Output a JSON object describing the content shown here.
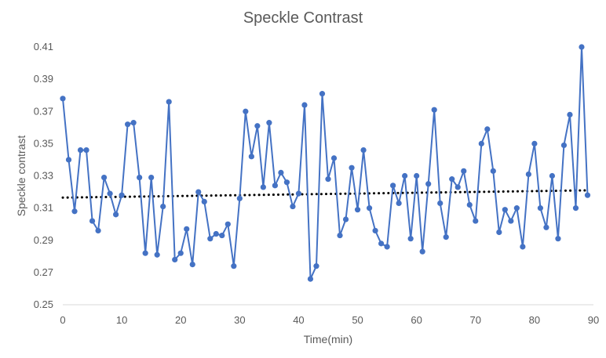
{
  "chart_data": {
    "type": "line",
    "title": "Speckle Contrast",
    "xlabel": "Time(min)",
    "ylabel": "Speckle contrast",
    "xlim": [
      0,
      90
    ],
    "ylim": [
      0.25,
      0.41
    ],
    "xticks": [
      0,
      10,
      20,
      30,
      40,
      50,
      60,
      70,
      80,
      90
    ],
    "yticks": [
      "0.25",
      "0.27",
      "0.29",
      "0.31",
      "0.33",
      "0.35",
      "0.37",
      "0.39",
      "0.41"
    ],
    "grid": false,
    "legend": "none",
    "series": [
      {
        "color": "#4472C4",
        "marker": "circle",
        "x": [
          0,
          1,
          2,
          3,
          4,
          5,
          6,
          7,
          8,
          9,
          10,
          11,
          12,
          13,
          14,
          15,
          16,
          17,
          18,
          19,
          20,
          21,
          22,
          23,
          24,
          25,
          26,
          27,
          28,
          29,
          30,
          31,
          32,
          33,
          34,
          35,
          36,
          37,
          38,
          39,
          40,
          41,
          42,
          43,
          44,
          45,
          46,
          47,
          48,
          49,
          50,
          51,
          52,
          53,
          54,
          55,
          56,
          57,
          58,
          59,
          60,
          61,
          62,
          63,
          64,
          65,
          66,
          67,
          68,
          69,
          70,
          71,
          72,
          73,
          74,
          75,
          76,
          77,
          78,
          79,
          80,
          81,
          82,
          83,
          84,
          85,
          86,
          87,
          88,
          89
        ],
        "y": [
          0.378,
          0.34,
          0.308,
          0.346,
          0.346,
          0.302,
          0.296,
          0.329,
          0.319,
          0.306,
          0.318,
          0.362,
          0.363,
          0.329,
          0.282,
          0.329,
          0.281,
          0.311,
          0.376,
          0.278,
          0.282,
          0.297,
          0.275,
          0.32,
          0.314,
          0.291,
          0.294,
          0.293,
          0.3,
          0.274,
          0.316,
          0.37,
          0.342,
          0.361,
          0.323,
          0.363,
          0.324,
          0.332,
          0.326,
          0.311,
          0.319,
          0.374,
          0.266,
          0.274,
          0.381,
          0.328,
          0.341,
          0.293,
          0.303,
          0.335,
          0.309,
          0.346,
          0.31,
          0.296,
          0.288,
          0.286,
          0.324,
          0.313,
          0.33,
          0.291,
          0.33,
          0.283,
          0.325,
          0.371,
          0.313,
          0.292,
          0.328,
          0.323,
          0.333,
          0.312,
          0.302,
          0.35,
          0.359,
          0.333,
          0.295,
          0.309,
          0.302,
          0.31,
          0.286,
          0.331,
          0.35,
          0.31,
          0.298,
          0.33,
          0.291,
          0.349,
          0.368,
          0.31,
          0.41,
          0.318
        ]
      }
    ],
    "trendline": {
      "type": "linear",
      "style": "dotted",
      "color": "#000000",
      "x": [
        0,
        89
      ],
      "y": [
        0.3165,
        0.321
      ]
    }
  }
}
